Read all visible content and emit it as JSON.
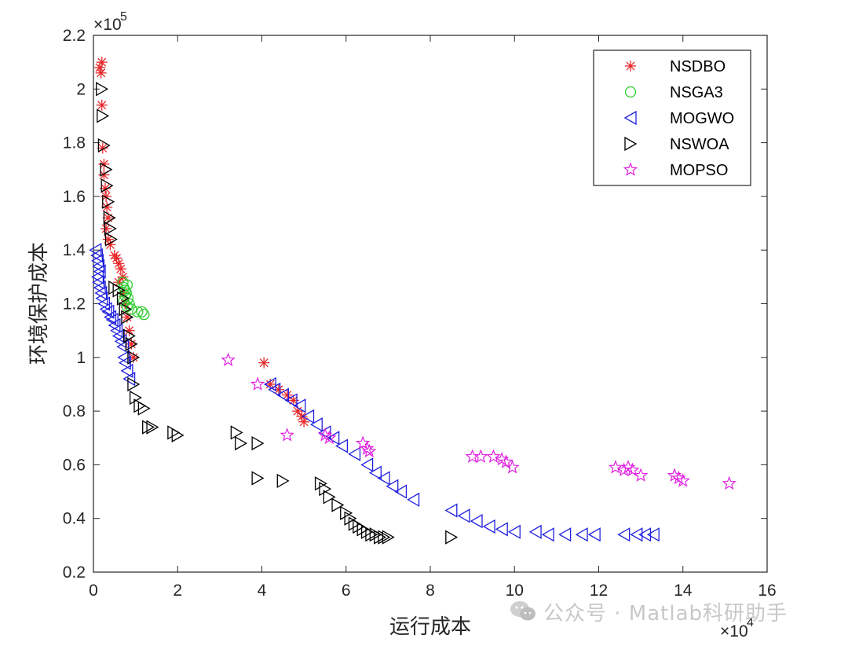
{
  "chart_data": {
    "type": "scatter",
    "xlabel": "运行成本",
    "ylabel": "环境保护成本",
    "x_exponent_label": "×10",
    "x_exponent": "4",
    "y_exponent_label": "×10",
    "y_exponent": "5",
    "xlim": [
      0,
      16
    ],
    "ylim": [
      0.2,
      2.2
    ],
    "x_ticks": [
      "0",
      "2",
      "4",
      "6",
      "8",
      "10",
      "12",
      "14",
      "16"
    ],
    "y_ticks": [
      "0.2",
      "0.4",
      "0.6",
      "0.8",
      "1",
      "1.2",
      "1.4",
      "1.6",
      "1.8",
      "2",
      "2.2"
    ],
    "legend_position": "top-right",
    "series": [
      {
        "name": "NSDBO",
        "marker": "asterisk",
        "color": "#e8272a",
        "points": [
          [
            0.15,
            2.08
          ],
          [
            0.18,
            2.06
          ],
          [
            0.2,
            2.1
          ],
          [
            0.2,
            1.94
          ],
          [
            0.22,
            1.78
          ],
          [
            0.25,
            1.72
          ],
          [
            0.25,
            1.68
          ],
          [
            0.28,
            1.63
          ],
          [
            0.3,
            1.6
          ],
          [
            0.32,
            1.56
          ],
          [
            0.35,
            1.52
          ],
          [
            0.3,
            1.48
          ],
          [
            0.35,
            1.44
          ],
          [
            0.4,
            1.42
          ],
          [
            0.5,
            1.38
          ],
          [
            0.55,
            1.37
          ],
          [
            0.6,
            1.35
          ],
          [
            0.65,
            1.33
          ],
          [
            0.7,
            1.3
          ],
          [
            0.6,
            1.28
          ],
          [
            0.7,
            1.24
          ],
          [
            0.75,
            1.2
          ],
          [
            0.8,
            1.15
          ],
          [
            0.85,
            1.1
          ],
          [
            0.9,
            1.05
          ],
          [
            0.95,
            1.0
          ],
          [
            4.05,
            0.98
          ],
          [
            4.2,
            0.9
          ],
          [
            4.4,
            0.88
          ],
          [
            4.6,
            0.86
          ],
          [
            4.75,
            0.84
          ],
          [
            4.85,
            0.8
          ],
          [
            4.95,
            0.78
          ],
          [
            5.0,
            0.76
          ]
        ]
      },
      {
        "name": "NSGA3",
        "marker": "circle",
        "color": "#2fcc2f",
        "points": [
          [
            0.7,
            1.28
          ],
          [
            0.72,
            1.26
          ],
          [
            0.75,
            1.25
          ],
          [
            0.8,
            1.27
          ],
          [
            0.78,
            1.24
          ],
          [
            0.82,
            1.22
          ],
          [
            0.85,
            1.2
          ],
          [
            0.8,
            1.19
          ],
          [
            0.9,
            1.18
          ],
          [
            1.05,
            1.17
          ],
          [
            1.15,
            1.17
          ],
          [
            1.2,
            1.16
          ],
          [
            0.75,
            1.23
          ],
          [
            0.72,
            1.21
          ]
        ]
      },
      {
        "name": "MOGWO",
        "marker": "triangle-left",
        "color": "#1f1fe0",
        "points": [
          [
            0.05,
            1.4
          ],
          [
            0.08,
            1.38
          ],
          [
            0.1,
            1.36
          ],
          [
            0.12,
            1.34
          ],
          [
            0.15,
            1.32
          ],
          [
            0.1,
            1.3
          ],
          [
            0.12,
            1.28
          ],
          [
            0.15,
            1.26
          ],
          [
            0.18,
            1.24
          ],
          [
            0.2,
            1.22
          ],
          [
            0.25,
            1.2
          ],
          [
            0.3,
            1.18
          ],
          [
            0.35,
            1.17
          ],
          [
            0.4,
            1.15
          ],
          [
            0.45,
            1.14
          ],
          [
            0.5,
            1.12
          ],
          [
            0.55,
            1.1
          ],
          [
            0.6,
            1.08
          ],
          [
            0.65,
            1.06
          ],
          [
            0.7,
            1.04
          ],
          [
            0.72,
            1.0
          ],
          [
            0.75,
            0.98
          ],
          [
            0.8,
            0.95
          ],
          [
            0.85,
            0.92
          ],
          [
            4.2,
            0.9
          ],
          [
            4.3,
            0.88
          ],
          [
            4.5,
            0.86
          ],
          [
            4.7,
            0.84
          ],
          [
            4.9,
            0.82
          ],
          [
            5.1,
            0.78
          ],
          [
            5.3,
            0.75
          ],
          [
            5.5,
            0.72
          ],
          [
            5.7,
            0.7
          ],
          [
            5.9,
            0.67
          ],
          [
            6.2,
            0.64
          ],
          [
            6.5,
            0.6
          ],
          [
            6.7,
            0.57
          ],
          [
            6.9,
            0.55
          ],
          [
            7.1,
            0.52
          ],
          [
            7.3,
            0.5
          ],
          [
            7.6,
            0.47
          ],
          [
            8.5,
            0.43
          ],
          [
            8.8,
            0.41
          ],
          [
            9.1,
            0.39
          ],
          [
            9.4,
            0.37
          ],
          [
            9.7,
            0.36
          ],
          [
            10.0,
            0.35
          ],
          [
            10.5,
            0.35
          ],
          [
            10.8,
            0.34
          ],
          [
            11.2,
            0.34
          ],
          [
            11.6,
            0.34
          ],
          [
            11.9,
            0.34
          ],
          [
            12.6,
            0.34
          ],
          [
            12.9,
            0.34
          ],
          [
            13.1,
            0.34
          ],
          [
            13.3,
            0.34
          ]
        ]
      },
      {
        "name": "NSWOA",
        "marker": "triangle-right",
        "color": "#000000",
        "points": [
          [
            0.2,
            2.0
          ],
          [
            0.22,
            1.9
          ],
          [
            0.25,
            1.79
          ],
          [
            0.3,
            1.7
          ],
          [
            0.32,
            1.64
          ],
          [
            0.35,
            1.58
          ],
          [
            0.38,
            1.52
          ],
          [
            0.4,
            1.48
          ],
          [
            0.42,
            1.44
          ],
          [
            0.5,
            1.26
          ],
          [
            0.6,
            1.25
          ],
          [
            0.7,
            1.22
          ],
          [
            0.75,
            1.18
          ],
          [
            0.8,
            1.15
          ],
          [
            0.85,
            1.08
          ],
          [
            0.9,
            1.05
          ],
          [
            0.95,
            1.0
          ],
          [
            0.95,
            0.9
          ],
          [
            1.0,
            0.85
          ],
          [
            1.1,
            0.82
          ],
          [
            1.2,
            0.81
          ],
          [
            1.3,
            0.74
          ],
          [
            1.4,
            0.74
          ],
          [
            1.9,
            0.72
          ],
          [
            2.0,
            0.71
          ],
          [
            3.4,
            0.72
          ],
          [
            3.5,
            0.68
          ],
          [
            3.9,
            0.68
          ],
          [
            3.9,
            0.55
          ],
          [
            4.5,
            0.54
          ],
          [
            5.4,
            0.53
          ],
          [
            5.5,
            0.51
          ],
          [
            5.6,
            0.48
          ],
          [
            5.8,
            0.45
          ],
          [
            6.0,
            0.42
          ],
          [
            6.1,
            0.4
          ],
          [
            6.2,
            0.38
          ],
          [
            6.3,
            0.37
          ],
          [
            6.4,
            0.36
          ],
          [
            6.5,
            0.35
          ],
          [
            6.6,
            0.34
          ],
          [
            6.7,
            0.34
          ],
          [
            6.8,
            0.33
          ],
          [
            6.9,
            0.33
          ],
          [
            7.0,
            0.33
          ],
          [
            8.5,
            0.33
          ]
        ]
      },
      {
        "name": "MOPSO",
        "marker": "star",
        "color": "#e020e0",
        "points": [
          [
            3.2,
            0.99
          ],
          [
            3.9,
            0.9
          ],
          [
            4.6,
            0.71
          ],
          [
            5.5,
            0.71
          ],
          [
            5.6,
            0.7
          ],
          [
            6.4,
            0.68
          ],
          [
            6.5,
            0.66
          ],
          [
            6.55,
            0.65
          ],
          [
            9.0,
            0.63
          ],
          [
            9.2,
            0.63
          ],
          [
            9.5,
            0.63
          ],
          [
            9.7,
            0.62
          ],
          [
            9.8,
            0.61
          ],
          [
            9.95,
            0.59
          ],
          [
            12.4,
            0.59
          ],
          [
            12.6,
            0.58
          ],
          [
            12.7,
            0.59
          ],
          [
            12.8,
            0.58
          ],
          [
            13.0,
            0.56
          ],
          [
            13.8,
            0.56
          ],
          [
            13.9,
            0.55
          ],
          [
            14.0,
            0.54
          ],
          [
            15.1,
            0.53
          ]
        ]
      }
    ]
  },
  "watermark": {
    "text": "公众号 · Matlab科研助手"
  }
}
